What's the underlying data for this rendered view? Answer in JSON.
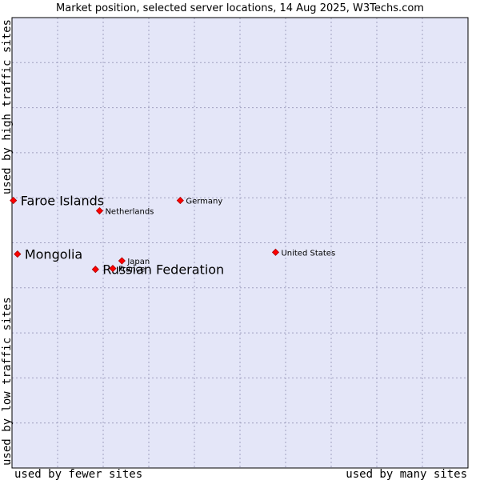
{
  "chart_data": {
    "type": "scatter",
    "title": "Market position, selected server locations, 14 Aug 2025, W3Techs.com",
    "xlabel_left": "used by fewer sites",
    "xlabel_right": "used by many sites",
    "ylabel_bottom": "used by low traffic sites",
    "ylabel_top": "used by high traffic sites",
    "xlim": [
      0,
      100
    ],
    "ylim": [
      0,
      100
    ],
    "grid": true,
    "marker_color": "#ff0000",
    "marker_stroke": "#aa0000",
    "plot_bg": "#e4e6f8",
    "grid_color": "#a0a0c0",
    "points": [
      {
        "name": "Faroe Islands",
        "x": 0.3,
        "y": 59.4,
        "highlight": true
      },
      {
        "name": "Mongolia",
        "x": 1.2,
        "y": 47.5,
        "highlight": true
      },
      {
        "name": "Russian Federation",
        "x": 18.3,
        "y": 44.1,
        "highlight": true
      },
      {
        "name": "France",
        "x": 22.1,
        "y": 44.3,
        "highlight": false
      },
      {
        "name": "Japan",
        "x": 24.1,
        "y": 46.0,
        "highlight": false
      },
      {
        "name": "Netherlands",
        "x": 19.2,
        "y": 57.1,
        "highlight": false
      },
      {
        "name": "Germany",
        "x": 36.9,
        "y": 59.4,
        "highlight": false
      },
      {
        "name": "United States",
        "x": 57.8,
        "y": 47.9,
        "highlight": false
      }
    ]
  }
}
